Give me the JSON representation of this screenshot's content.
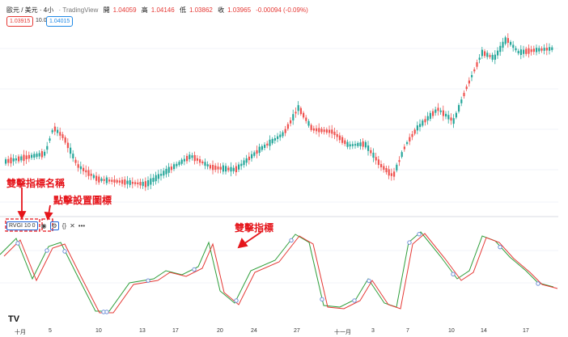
{
  "header": {
    "symbol": "歐元 / 美元 · 4小",
    "source": "· TradingView",
    "open_label": "開",
    "open_value": "1.04059",
    "high_label": "高",
    "high_value": "1.04146",
    "low_label": "低",
    "low_value": "1.03862",
    "close_label": "收",
    "close_value": "1.03965",
    "change": "-0.00094 (-0.09%)"
  },
  "quotes": {
    "sell_price": "1.03915",
    "spread": "10.0",
    "buy_price": "1.04015"
  },
  "indicator": {
    "name": "RVGI 10 0",
    "settings_icon": "gear-icon",
    "code_icon": "{}",
    "close_icon": "close-icon",
    "more_icon": "•••"
  },
  "callouts": {
    "indicator_name_label": "雙擊指標名稱",
    "settings_label": "點擊設置圖標",
    "indicator_label": "雙擊指標"
  },
  "xaxis": {
    "labels": [
      "十月",
      "5",
      "10",
      "13",
      "17",
      "20",
      "24",
      "27",
      "十一月",
      "3",
      "7",
      "10",
      "14",
      "17"
    ]
  },
  "logo": "TV",
  "colors": {
    "up": "#26a69a",
    "down": "#ef5350",
    "rvgi": "#2e9e3a",
    "signal": "#e53935",
    "callout": "#e5151b",
    "marker": "#6d8fd8"
  }
}
